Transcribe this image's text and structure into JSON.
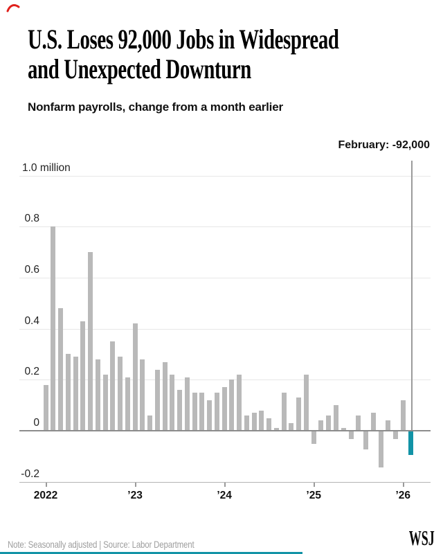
{
  "header": {
    "title_line1": "U.S. Loses 92,000 Jobs in Widespread",
    "title_line2": "and Unexpected Downturn",
    "subtitle": "Nonfarm payrolls, change from a month earlier"
  },
  "chart_data": {
    "type": "bar",
    "title": "Nonfarm payrolls, change from a month earlier",
    "unit": "million jobs, change from a month earlier",
    "annotation": "February: -92,000",
    "bar_color": "#b9b9b9",
    "highlight": {
      "index": 49,
      "category": "Feb 2026",
      "value": -0.092,
      "color": "#1293a6",
      "label": "February: -92,000"
    },
    "ylim": [
      -0.2,
      1.0
    ],
    "grid": true,
    "legend": "none",
    "y_ticks": [
      {
        "label": "1.0 million",
        "value": 1.0
      },
      {
        "label": "0.8",
        "value": 0.8
      },
      {
        "label": "0.6",
        "value": 0.6
      },
      {
        "label": "0.4",
        "value": 0.4
      },
      {
        "label": "0.2",
        "value": 0.2
      },
      {
        "label": "0",
        "value": 0
      },
      {
        "label": "-0.2",
        "value": -0.2
      }
    ],
    "x_ticks": [
      {
        "label": "2022",
        "index": 0
      },
      {
        "label": "’23",
        "index": 12
      },
      {
        "label": "’24",
        "index": 24
      },
      {
        "label": "’25",
        "index": 36
      },
      {
        "label": "’26",
        "index": 48
      }
    ],
    "categories": [
      "Jan 2022",
      "Feb 2022",
      "Mar 2022",
      "Apr 2022",
      "May 2022",
      "Jun 2022",
      "Jul 2022",
      "Aug 2022",
      "Sep 2022",
      "Oct 2022",
      "Nov 2022",
      "Dec 2022",
      "Jan 2023",
      "Feb 2023",
      "Mar 2023",
      "Apr 2023",
      "May 2023",
      "Jun 2023",
      "Jul 2023",
      "Aug 2023",
      "Sep 2023",
      "Oct 2023",
      "Nov 2023",
      "Dec 2023",
      "Jan 2024",
      "Feb 2024",
      "Mar 2024",
      "Apr 2024",
      "May 2024",
      "Jun 2024",
      "Jul 2024",
      "Aug 2024",
      "Sep 2024",
      "Oct 2024",
      "Nov 2024",
      "Dec 2024",
      "Jan 2025",
      "Feb 2025",
      "Mar 2025",
      "Apr 2025",
      "May 2025",
      "Jun 2025",
      "Jul 2025",
      "Aug 2025",
      "Sep 2025",
      "Oct 2025",
      "Nov 2025",
      "Dec 2025",
      "Jan 2026",
      "Feb 2026"
    ],
    "values": [
      0.18,
      0.8,
      0.48,
      0.3,
      0.29,
      0.43,
      0.7,
      0.28,
      0.22,
      0.35,
      0.29,
      0.21,
      0.42,
      0.28,
      0.06,
      0.24,
      0.27,
      0.22,
      0.16,
      0.21,
      0.15,
      0.15,
      0.12,
      0.15,
      0.17,
      0.2,
      0.22,
      0.06,
      0.07,
      0.08,
      0.05,
      0.01,
      0.15,
      0.03,
      0.13,
      0.22,
      -0.05,
      0.04,
      0.06,
      0.1,
      0.01,
      -0.03,
      0.06,
      -0.07,
      0.07,
      -0.14,
      0.04,
      -0.03,
      0.12,
      -0.092
    ]
  },
  "footer": {
    "note": "Note: Seasonally adjusted | Source: Labor Department",
    "logo": "WSJ"
  }
}
